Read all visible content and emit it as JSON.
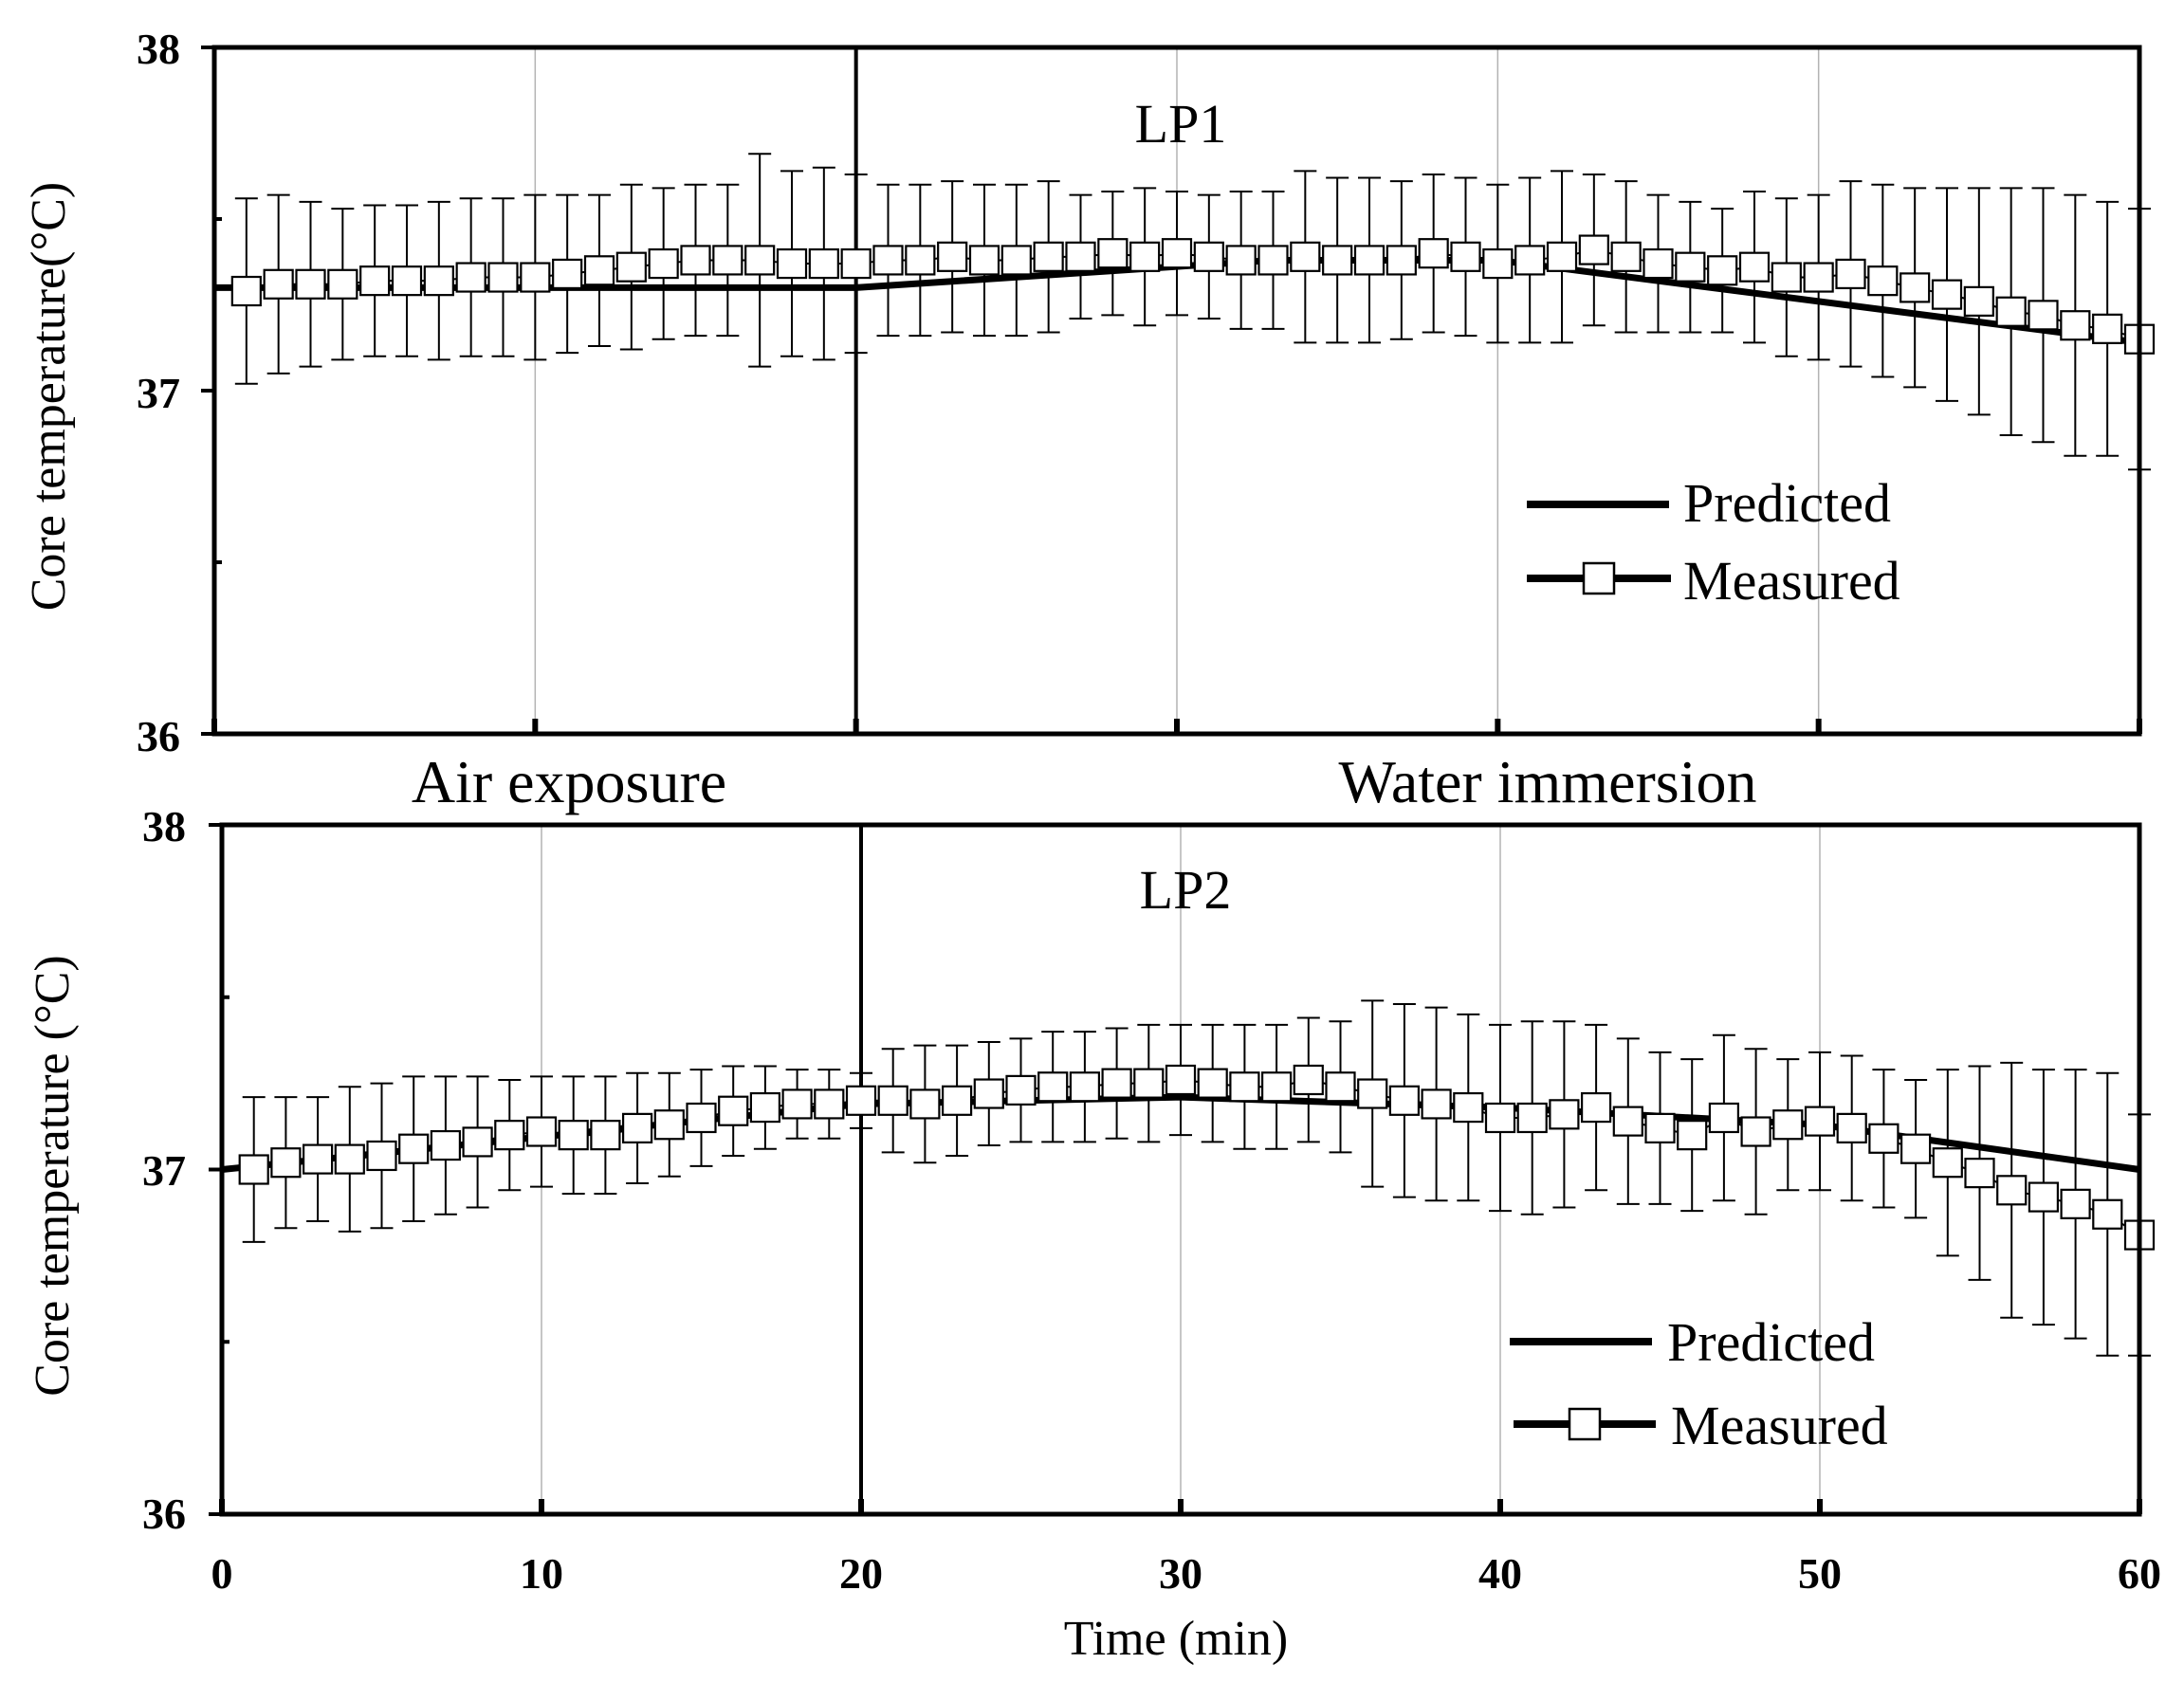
{
  "chart_data": [
    {
      "type": "line",
      "title": "LP1",
      "xlabel": "",
      "ylabel": "Core  temperature(°C)",
      "xlim": [
        0,
        60
      ],
      "ylim": [
        36,
        38
      ],
      "x_ticks": [
        "0",
        "10",
        "20",
        "30",
        "40",
        "50",
        "60"
      ],
      "y_ticks": [
        "36",
        "37",
        "38"
      ],
      "grid": "vertical",
      "legend": {
        "position": "bottom-right",
        "entries": [
          "Predicted",
          "Measured"
        ]
      },
      "phase_divider_x": 20,
      "series": [
        {
          "name": "Predicted",
          "style": "solid line",
          "x": [
            0,
            20,
            33,
            40,
            60
          ],
          "y": [
            37.3,
            37.3,
            37.38,
            37.38,
            37.14
          ]
        },
        {
          "name": "Measured",
          "style": "open square with error bars",
          "x": [
            1,
            2,
            3,
            4,
            5,
            6,
            7,
            8,
            9,
            10,
            11,
            12,
            13,
            14,
            15,
            16,
            17,
            18,
            19,
            20,
            21,
            22,
            23,
            24,
            25,
            26,
            27,
            28,
            29,
            30,
            31,
            32,
            33,
            34,
            35,
            36,
            37,
            38,
            39,
            40,
            41,
            42,
            43,
            44,
            45,
            46,
            47,
            48,
            49,
            50,
            51,
            52,
            53,
            54,
            55,
            56,
            57,
            58,
            59,
            60
          ],
          "y": [
            37.29,
            37.31,
            37.31,
            37.31,
            37.32,
            37.32,
            37.32,
            37.33,
            37.33,
            37.33,
            37.34,
            37.35,
            37.36,
            37.37,
            37.38,
            37.38,
            37.38,
            37.37,
            37.37,
            37.37,
            37.38,
            37.38,
            37.39,
            37.38,
            37.38,
            37.39,
            37.39,
            37.4,
            37.39,
            37.4,
            37.39,
            37.38,
            37.38,
            37.39,
            37.38,
            37.38,
            37.38,
            37.4,
            37.39,
            37.37,
            37.38,
            37.39,
            37.41,
            37.39,
            37.37,
            37.36,
            37.35,
            37.36,
            37.33,
            37.33,
            37.34,
            37.32,
            37.3,
            37.28,
            37.26,
            37.23,
            37.22,
            37.19,
            37.18,
            37.15
          ],
          "error": [
            0.27,
            0.26,
            0.24,
            0.22,
            0.22,
            0.22,
            0.23,
            0.23,
            0.23,
            0.24,
            0.23,
            0.22,
            0.24,
            0.22,
            0.22,
            0.22,
            0.31,
            0.27,
            0.28,
            0.26,
            0.22,
            0.22,
            0.22,
            0.22,
            0.22,
            0.22,
            0.18,
            0.18,
            0.2,
            0.18,
            0.18,
            0.2,
            0.2,
            0.25,
            0.24,
            0.24,
            0.23,
            0.23,
            0.23,
            0.23,
            0.24,
            0.25,
            0.22,
            0.22,
            0.2,
            0.19,
            0.18,
            0.22,
            0.23,
            0.24,
            0.27,
            0.28,
            0.29,
            0.31,
            0.33,
            0.36,
            0.37,
            0.38,
            0.37,
            0.38
          ]
        }
      ]
    },
    {
      "type": "line",
      "title": "LP2",
      "xlabel": "Time (min)",
      "ylabel": "Core  temperature (°C)",
      "xlim": [
        0,
        60
      ],
      "ylim": [
        36,
        38
      ],
      "x_ticks": [
        "0",
        "10",
        "20",
        "30",
        "40",
        "50",
        "60"
      ],
      "y_ticks": [
        "36",
        "37",
        "38"
      ],
      "grid": "vertical",
      "legend": {
        "position": "bottom-right",
        "entries": [
          "Predicted",
          "Measured"
        ]
      },
      "phase_divider_x": 20,
      "series": [
        {
          "name": "Predicted",
          "style": "solid line",
          "x": [
            0,
            20,
            30,
            40,
            50,
            60
          ],
          "y": [
            37.0,
            37.19,
            37.21,
            37.18,
            37.13,
            37.0
          ]
        },
        {
          "name": "Measured",
          "style": "open square with error bars",
          "x": [
            1,
            2,
            3,
            4,
            5,
            6,
            7,
            8,
            9,
            10,
            11,
            12,
            13,
            14,
            15,
            16,
            17,
            18,
            19,
            20,
            21,
            22,
            23,
            24,
            25,
            26,
            27,
            28,
            29,
            30,
            31,
            32,
            33,
            34,
            35,
            36,
            37,
            38,
            39,
            40,
            41,
            42,
            43,
            44,
            45,
            46,
            47,
            48,
            49,
            50,
            51,
            52,
            53,
            54,
            55,
            56,
            57,
            58,
            59,
            60
          ],
          "y": [
            37.0,
            37.02,
            37.03,
            37.03,
            37.04,
            37.06,
            37.07,
            37.08,
            37.1,
            37.11,
            37.1,
            37.1,
            37.12,
            37.13,
            37.15,
            37.17,
            37.18,
            37.19,
            37.19,
            37.2,
            37.2,
            37.19,
            37.2,
            37.22,
            37.23,
            37.24,
            37.24,
            37.25,
            37.25,
            37.26,
            37.25,
            37.24,
            37.24,
            37.26,
            37.24,
            37.22,
            37.2,
            37.19,
            37.18,
            37.15,
            37.15,
            37.16,
            37.18,
            37.14,
            37.12,
            37.1,
            37.15,
            37.11,
            37.13,
            37.14,
            37.12,
            37.09,
            37.06,
            37.02,
            36.99,
            36.94,
            36.92,
            36.9,
            36.87,
            36.81
          ],
          "error": [
            0.21,
            0.19,
            0.18,
            0.21,
            0.21,
            0.21,
            0.2,
            0.19,
            0.16,
            0.16,
            0.17,
            0.17,
            0.16,
            0.15,
            0.14,
            0.13,
            0.12,
            0.1,
            0.1,
            0.08,
            0.15,
            0.17,
            0.16,
            0.15,
            0.15,
            0.16,
            0.16,
            0.16,
            0.17,
            0.16,
            0.17,
            0.18,
            0.18,
            0.18,
            0.19,
            0.27,
            0.28,
            0.28,
            0.27,
            0.27,
            0.28,
            0.27,
            0.24,
            0.24,
            0.22,
            0.22,
            0.24,
            0.24,
            0.19,
            0.2,
            0.21,
            0.2,
            0.2,
            0.27,
            0.31,
            0.37,
            0.37,
            0.39,
            0.41,
            0.35
          ]
        }
      ]
    }
  ],
  "phase_labels": [
    "Air exposure",
    "Water immersion"
  ],
  "shared_xlabel": "Time (min)"
}
